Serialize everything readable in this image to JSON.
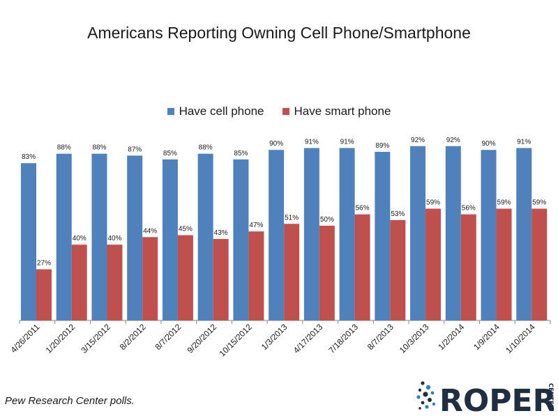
{
  "colors": {
    "cell": "#4f81bd",
    "smart": "#c0504d",
    "logo_dark": "#1f2f3f",
    "logo_blue": "#2f7fc0"
  },
  "source_note": "Pew Research Center polls.",
  "logo": {
    "word": "ROPER",
    "sub": "CENTER"
  },
  "chart_data": {
    "type": "bar",
    "title": "Americans Reporting Owning Cell Phone/Smartphone",
    "xlabel": "",
    "ylabel": "",
    "ylim": [
      0,
      100
    ],
    "grid": false,
    "legend_position": "top",
    "categories": [
      "4/26/2011",
      "1/20/2012",
      "3/15/2012",
      "8/2/2012",
      "8/7/2012",
      "9/20/2012",
      "10/15/2012",
      "1/3/2013",
      "4/17/2013",
      "7/18/2013",
      "8/7/2013",
      "10/3/2013",
      "1/2/2014",
      "1/9/2014",
      "1/10/2014"
    ],
    "series": [
      {
        "name": "Have cell phone",
        "values": [
          83,
          88,
          88,
          87,
          85,
          88,
          85,
          90,
          91,
          91,
          89,
          92,
          92,
          90,
          91
        ]
      },
      {
        "name": "Have smart phone",
        "values": [
          27,
          40,
          40,
          44,
          45,
          43,
          47,
          51,
          50,
          56,
          53,
          59,
          56,
          59,
          59
        ]
      }
    ],
    "value_suffix": "%"
  }
}
